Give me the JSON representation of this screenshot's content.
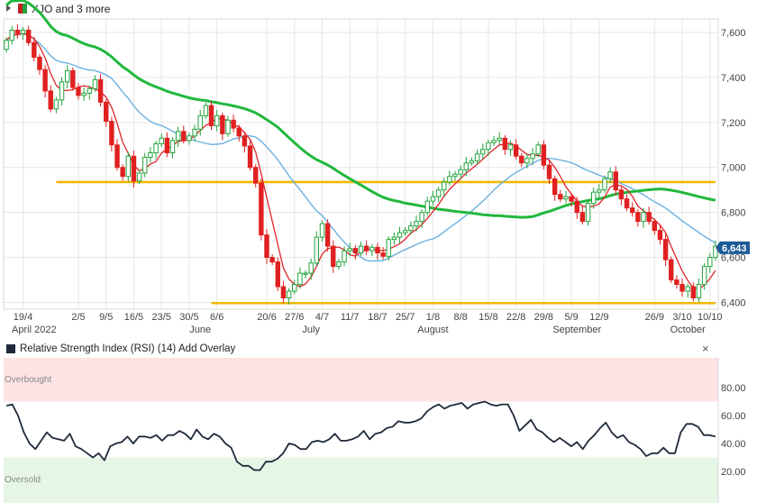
{
  "header": {
    "title": "XJO and 3 more",
    "icon_colors": [
      "#c51f1f",
      "#22a33b"
    ]
  },
  "rsi_panel": {
    "title": "Relative Strength Index (RSI) (14)",
    "add_overlay": "Add Overlay",
    "close": "×",
    "overbought_label": "Overbought",
    "oversold_label": "Oversold",
    "line_color": "#1f2a3a",
    "overbought_color": "#fde3e3",
    "oversold_color": "#e6f6e6"
  },
  "colors": {
    "up": "#22a33b",
    "down": "#e02020",
    "sma_fast": "#e0242a",
    "sma_mid": "#6ab0e0",
    "sma_slow": "#21b83d",
    "level": "#f2b705",
    "price_tag": "#1c5a96",
    "grid": "#e6e6e6"
  },
  "price_tag": "6,643",
  "chart_data": [
    {
      "type": "candlestick",
      "y_ticks": [
        "7,600",
        "7,400",
        "7,200",
        "7,000",
        "6,800",
        "6,600",
        "6,400"
      ],
      "ylim": [
        6370,
        7660
      ],
      "x_ticks": [
        {
          "label": "19/4",
          "i": 3
        },
        {
          "label": "2/5",
          "i": 13
        },
        {
          "label": "9/5",
          "i": 18
        },
        {
          "label": "16/5",
          "i": 23
        },
        {
          "label": "23/5",
          "i": 28
        },
        {
          "label": "30/5",
          "i": 33
        },
        {
          "label": "6/6",
          "i": 38
        },
        {
          "label": "20/6",
          "i": 47
        },
        {
          "label": "27/6",
          "i": 52
        },
        {
          "label": "4/7",
          "i": 57
        },
        {
          "label": "11/7",
          "i": 62
        },
        {
          "label": "18/7",
          "i": 67
        },
        {
          "label": "25/7",
          "i": 72
        },
        {
          "label": "1/8",
          "i": 77
        },
        {
          "label": "8/8",
          "i": 82
        },
        {
          "label": "15/8",
          "i": 87
        },
        {
          "label": "22/8",
          "i": 92
        },
        {
          "label": "29/8",
          "i": 97
        },
        {
          "label": "5/9",
          "i": 102
        },
        {
          "label": "12/9",
          "i": 107
        },
        {
          "label": "26/9",
          "i": 117
        },
        {
          "label": "3/10",
          "i": 122
        },
        {
          "label": "10/10",
          "i": 127
        }
      ],
      "month_labels": [
        {
          "label": "April 2022",
          "i": 5
        },
        {
          "label": "June",
          "i": 35
        },
        {
          "label": "July",
          "i": 55
        },
        {
          "label": "August",
          "i": 77
        },
        {
          "label": "September",
          "i": 103
        },
        {
          "label": "October",
          "i": 123
        }
      ],
      "levels": [
        {
          "y": 6935,
          "from_i": 9,
          "to_i": 128
        },
        {
          "y": 6397,
          "from_i": 37,
          "to_i": 128
        }
      ],
      "closes": [
        7565,
        7610,
        7595,
        7610,
        7555,
        7490,
        7435,
        7340,
        7260,
        7300,
        7380,
        7430,
        7355,
        7320,
        7330,
        7350,
        7390,
        7290,
        7205,
        7100,
        7000,
        6960,
        7050,
        6940,
        6975,
        7045,
        7065,
        7105,
        7130,
        7065,
        7120,
        7160,
        7120,
        7140,
        7170,
        7230,
        7275,
        7185,
        7230,
        7150,
        7210,
        7175,
        7140,
        7095,
        7000,
        6930,
        6700,
        6600,
        6580,
        6470,
        6420,
        6450,
        6480,
        6530,
        6530,
        6575,
        6690,
        6750,
        6650,
        6560,
        6580,
        6630,
        6640,
        6620,
        6650,
        6630,
        6645,
        6620,
        6605,
        6680,
        6690,
        6710,
        6720,
        6740,
        6760,
        6800,
        6850,
        6870,
        6900,
        6935,
        6960,
        6970,
        6990,
        7020,
        7030,
        7060,
        7080,
        7110,
        7120,
        7130,
        7080,
        7100,
        7050,
        7020,
        7040,
        7060,
        7100,
        7010,
        6950,
        6880,
        6860,
        6870,
        6850,
        6800,
        6760,
        6840,
        6890,
        6900,
        6950,
        6980,
        6900,
        6860,
        6820,
        6800,
        6760,
        6800,
        6760,
        6720,
        6680,
        6590,
        6500,
        6480,
        6450,
        6470,
        6420,
        6480,
        6560,
        6600,
        6650
      ]
    },
    {
      "type": "line",
      "series_label": "Relative Strength Index (RSI) (14)",
      "y_ticks": [
        "80.00",
        "60.00",
        "40.00",
        "20.00"
      ],
      "ylim": [
        0,
        100
      ],
      "values": [
        67,
        68,
        60,
        48,
        40,
        36,
        42,
        48,
        44,
        43,
        42,
        47,
        38,
        36,
        33,
        30,
        33,
        28,
        38,
        40,
        41,
        45,
        40,
        45,
        45,
        44,
        46,
        42,
        46,
        46,
        49,
        47,
        43,
        50,
        45,
        43,
        47,
        45,
        40,
        37,
        27,
        24,
        24,
        21,
        21,
        27,
        27,
        29,
        33,
        40,
        39,
        36,
        36,
        41,
        42,
        41,
        43,
        47,
        42,
        42,
        43,
        45,
        49,
        43,
        47,
        48,
        51,
        52,
        56,
        55,
        55,
        56,
        58,
        63,
        66,
        68,
        65,
        67,
        68,
        69,
        65,
        68,
        69,
        70,
        68,
        67,
        68,
        68,
        60,
        49,
        53,
        57,
        50,
        48,
        44,
        41,
        44,
        41,
        38,
        41,
        36,
        42,
        46,
        51,
        55,
        48,
        44,
        46,
        41,
        39,
        36,
        31,
        33,
        33,
        37,
        33,
        33,
        48,
        54,
        54,
        52,
        46,
        46,
        45
      ]
    }
  ]
}
